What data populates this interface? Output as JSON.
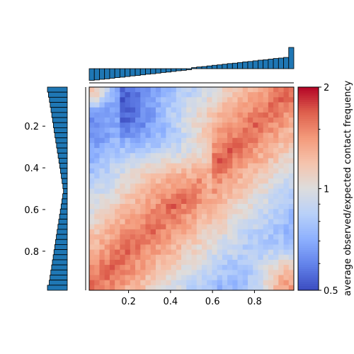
{
  "chart_data": {
    "type": "heatmap",
    "n": 40,
    "x_ticks": [
      0.2,
      0.4,
      0.6,
      0.8
    ],
    "y_ticks": [
      0.2,
      0.4,
      0.6,
      0.8
    ],
    "xlim": [
      0.0125,
      0.9875
    ],
    "ylim": [
      0.9875,
      0.0125
    ],
    "colorbar": {
      "label": "average observed/expected contact frequency",
      "scale": "log",
      "range": [
        0.5,
        2
      ],
      "ticks": [
        0.5,
        1,
        2
      ],
      "tick_labels": [
        "0.5",
        "1",
        "2"
      ],
      "cmap": "coolwarm"
    },
    "marginal_top": {
      "type": "bar",
      "bins": 40,
      "values": [
        -0.55,
        -0.53,
        -0.5,
        -0.48,
        -0.45,
        -0.42,
        -0.4,
        -0.37,
        -0.34,
        -0.32,
        -0.29,
        -0.26,
        -0.24,
        -0.21,
        -0.18,
        -0.16,
        -0.13,
        -0.1,
        -0.08,
        -0.05,
        0.05,
        0.08,
        0.1,
        0.13,
        0.16,
        0.18,
        0.21,
        0.24,
        0.26,
        0.29,
        0.32,
        0.34,
        0.37,
        0.4,
        0.42,
        0.45,
        0.48,
        0.5,
        0.53,
        1.0
      ]
    },
    "marginal_left": {
      "type": "bar",
      "bins": 40,
      "values": [
        1.0,
        0.95,
        0.9,
        0.86,
        0.82,
        0.78,
        0.74,
        0.7,
        0.66,
        0.62,
        0.58,
        0.54,
        0.5,
        0.46,
        0.42,
        0.38,
        0.34,
        0.3,
        0.26,
        0.22,
        0.19,
        0.23,
        0.27,
        0.31,
        0.35,
        0.39,
        0.43,
        0.47,
        0.51,
        0.55,
        0.59,
        0.63,
        0.67,
        0.71,
        0.75,
        0.79,
        0.83,
        0.87,
        0.91,
        1.0
      ]
    },
    "colors": {
      "bar_fill": "#1f77b4",
      "bar_edge": "#000000"
    }
  }
}
